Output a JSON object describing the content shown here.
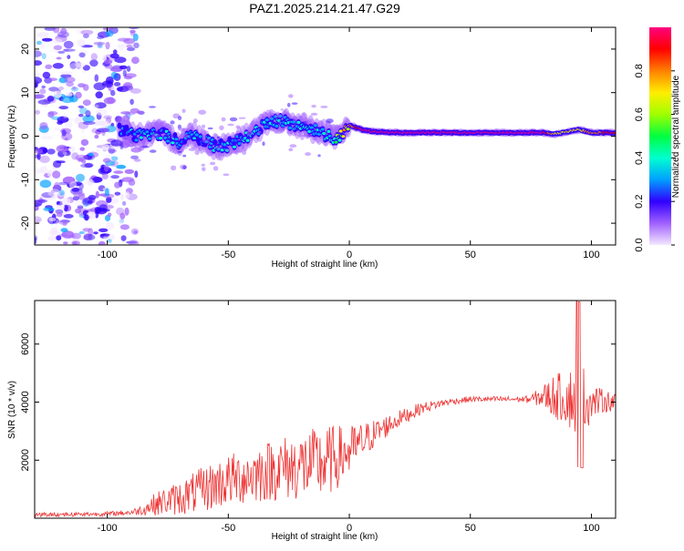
{
  "title": "PAZ1.2025.214.21.47.G29",
  "chart_data": [
    {
      "type": "heatmap",
      "xlabel": "Height of straight line (km)",
      "ylabel": "Frequency (Hz)",
      "xlim": [
        -130,
        110
      ],
      "ylim": [
        -25,
        25
      ],
      "xticks": [
        -100,
        -50,
        0,
        50,
        100
      ],
      "yticks": [
        -20,
        -10,
        0,
        10,
        20
      ],
      "colorbar": {
        "label": "Normalized spectral amplitude",
        "range": [
          0,
          1
        ],
        "ticks": [
          "0.0",
          "0.2",
          "0.4",
          "0.6",
          "0.8"
        ],
        "colors": [
          "#f4e8ff",
          "#a060ff",
          "#3000ff",
          "#00a0ff",
          "#00ffd0",
          "#00ff40",
          "#a0ff00",
          "#ffee00",
          "#ff8000",
          "#ff0000",
          "#ff0080"
        ]
      },
      "ridge": {
        "x": [
          -95,
          -90,
          -85,
          -80,
          -75,
          -70,
          -65,
          -60,
          -55,
          -50,
          -45,
          -40,
          -35,
          -30,
          -25,
          -20,
          -15,
          -10,
          -5,
          0,
          5,
          10,
          20,
          40,
          60,
          80,
          85,
          90,
          95,
          100,
          110
        ],
        "freq": [
          1.5,
          0.5,
          0.0,
          1.0,
          0.0,
          -1.5,
          0.5,
          -1.0,
          -2.5,
          -2.0,
          -1.0,
          1.0,
          2.5,
          3.5,
          3.0,
          2.5,
          1.5,
          0.5,
          -0.5,
          2.5,
          1.5,
          1.0,
          0.8,
          0.8,
          0.8,
          0.8,
          0.5,
          1.0,
          1.5,
          0.8,
          0.8
        ],
        "amplitude": [
          0.25,
          0.3,
          0.3,
          0.3,
          0.3,
          0.3,
          0.3,
          0.3,
          0.3,
          0.3,
          0.35,
          0.35,
          0.35,
          0.35,
          0.35,
          0.35,
          0.35,
          0.35,
          0.5,
          0.75,
          0.95,
          0.95,
          0.95,
          0.95,
          0.95,
          0.95,
          0.7,
          0.75,
          0.7,
          0.8,
          0.9
        ]
      },
      "noise_region_x": [
        -130,
        -88
      ]
    },
    {
      "type": "line",
      "xlabel": "Height of straight line (km)",
      "ylabel": "SNR (10 * v/v)",
      "xlim": [
        -130,
        110
      ],
      "ylim": [
        0,
        7500
      ],
      "xticks": [
        -100,
        -50,
        0,
        50,
        100
      ],
      "yticks": [
        2000,
        4000,
        6000
      ],
      "color": "#ee3333",
      "envelope": {
        "x": [
          -130,
          -100,
          -90,
          -85,
          -80,
          -70,
          -60,
          -50,
          -40,
          -30,
          -20,
          -10,
          -5,
          0,
          10,
          20,
          30,
          40,
          50,
          60,
          70,
          75,
          80,
          85,
          90,
          95,
          100,
          105,
          110
        ],
        "mean": [
          120,
          150,
          200,
          300,
          500,
          700,
          1000,
          1300,
          1500,
          1700,
          1800,
          1900,
          2100,
          2300,
          2900,
          3400,
          3800,
          4000,
          4100,
          4100,
          4100,
          4100,
          4200,
          4200,
          4150,
          4050,
          4000,
          4050,
          4000
        ],
        "spread": [
          80,
          80,
          100,
          200,
          400,
          600,
          800,
          900,
          1000,
          1100,
          1200,
          1300,
          1100,
          900,
          500,
          300,
          200,
          120,
          100,
          100,
          100,
          150,
          400,
          800,
          900,
          1600,
          600,
          400,
          300
        ]
      }
    }
  ]
}
